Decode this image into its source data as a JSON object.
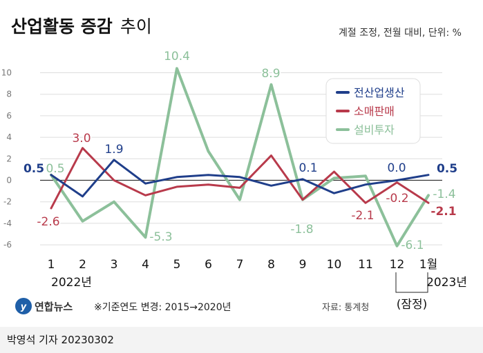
{
  "title_main": "산업활동 증감",
  "title_sub": "추이",
  "subtitle": "계절 조정, 전월 대비, 단위: %",
  "logo_text": "연합뉴스",
  "footnote": "※기준연도 변경: 2015→2020년",
  "source": "자료: 통계청",
  "provisional_label": "(잠정)",
  "byline": "박영석 기자  20230302",
  "year_labels": [
    "2022년",
    "2023년"
  ],
  "colors": {
    "production": "#1f3e8a",
    "retail": "#b83a4b",
    "investment": "#8cc09a",
    "zero_line": "#333333",
    "grid": "#dddddd"
  },
  "chart_data": {
    "type": "line",
    "x": [
      "1",
      "2",
      "3",
      "4",
      "5",
      "6",
      "7",
      "8",
      "9",
      "10",
      "11",
      "12",
      "1월"
    ],
    "ylim": [
      -6.5,
      11
    ],
    "yticks": [
      "10",
      "8",
      "6",
      "4",
      "2",
      "0",
      "-2",
      "-4",
      "-6"
    ],
    "legend_position": "top-right",
    "series": [
      {
        "name": "전산업생산",
        "values": [
          0.5,
          -1.5,
          1.9,
          -0.3,
          0.3,
          0.5,
          0.3,
          -0.5,
          0.1,
          -1.2,
          -0.4,
          0.0,
          0.5
        ]
      },
      {
        "name": "소매판매",
        "values": [
          -2.6,
          3.0,
          0.0,
          -1.4,
          -0.6,
          -0.4,
          -0.7,
          2.3,
          -1.8,
          0.8,
          -2.1,
          -0.2,
          -2.1
        ]
      },
      {
        "name": "설비투자",
        "values": [
          0.5,
          -3.8,
          -2.0,
          -5.3,
          10.4,
          2.7,
          -1.8,
          8.9,
          -1.8,
          0.2,
          0.4,
          -6.1,
          -1.4
        ]
      }
    ],
    "labels": [
      {
        "text": "0.5",
        "color": "#1f3e8a"
      },
      {
        "text": "0.5",
        "color": "#8cc09a"
      },
      {
        "text": "-2.6",
        "color": "#b83a4b"
      },
      {
        "text": "3.0",
        "color": "#b83a4b"
      },
      {
        "text": "1.9",
        "color": "#1f3e8a"
      },
      {
        "text": "-5.3",
        "color": "#8cc09a"
      },
      {
        "text": "10.4",
        "color": "#8cc09a"
      },
      {
        "text": "8.9",
        "color": "#8cc09a"
      },
      {
        "text": "0.1",
        "color": "#1f3e8a"
      },
      {
        "text": "-1.8",
        "color": "#8cc09a"
      },
      {
        "text": "-2.1",
        "color": "#b83a4b"
      },
      {
        "text": "0.0",
        "color": "#1f3e8a"
      },
      {
        "text": "-0.2",
        "color": "#b83a4b"
      },
      {
        "text": "-6.1",
        "color": "#8cc09a"
      },
      {
        "text": "0.5",
        "color": "#1f3e8a"
      },
      {
        "text": "-1.4",
        "color": "#8cc09a"
      },
      {
        "text": "-2.1",
        "color": "#b83a4b"
      }
    ]
  }
}
